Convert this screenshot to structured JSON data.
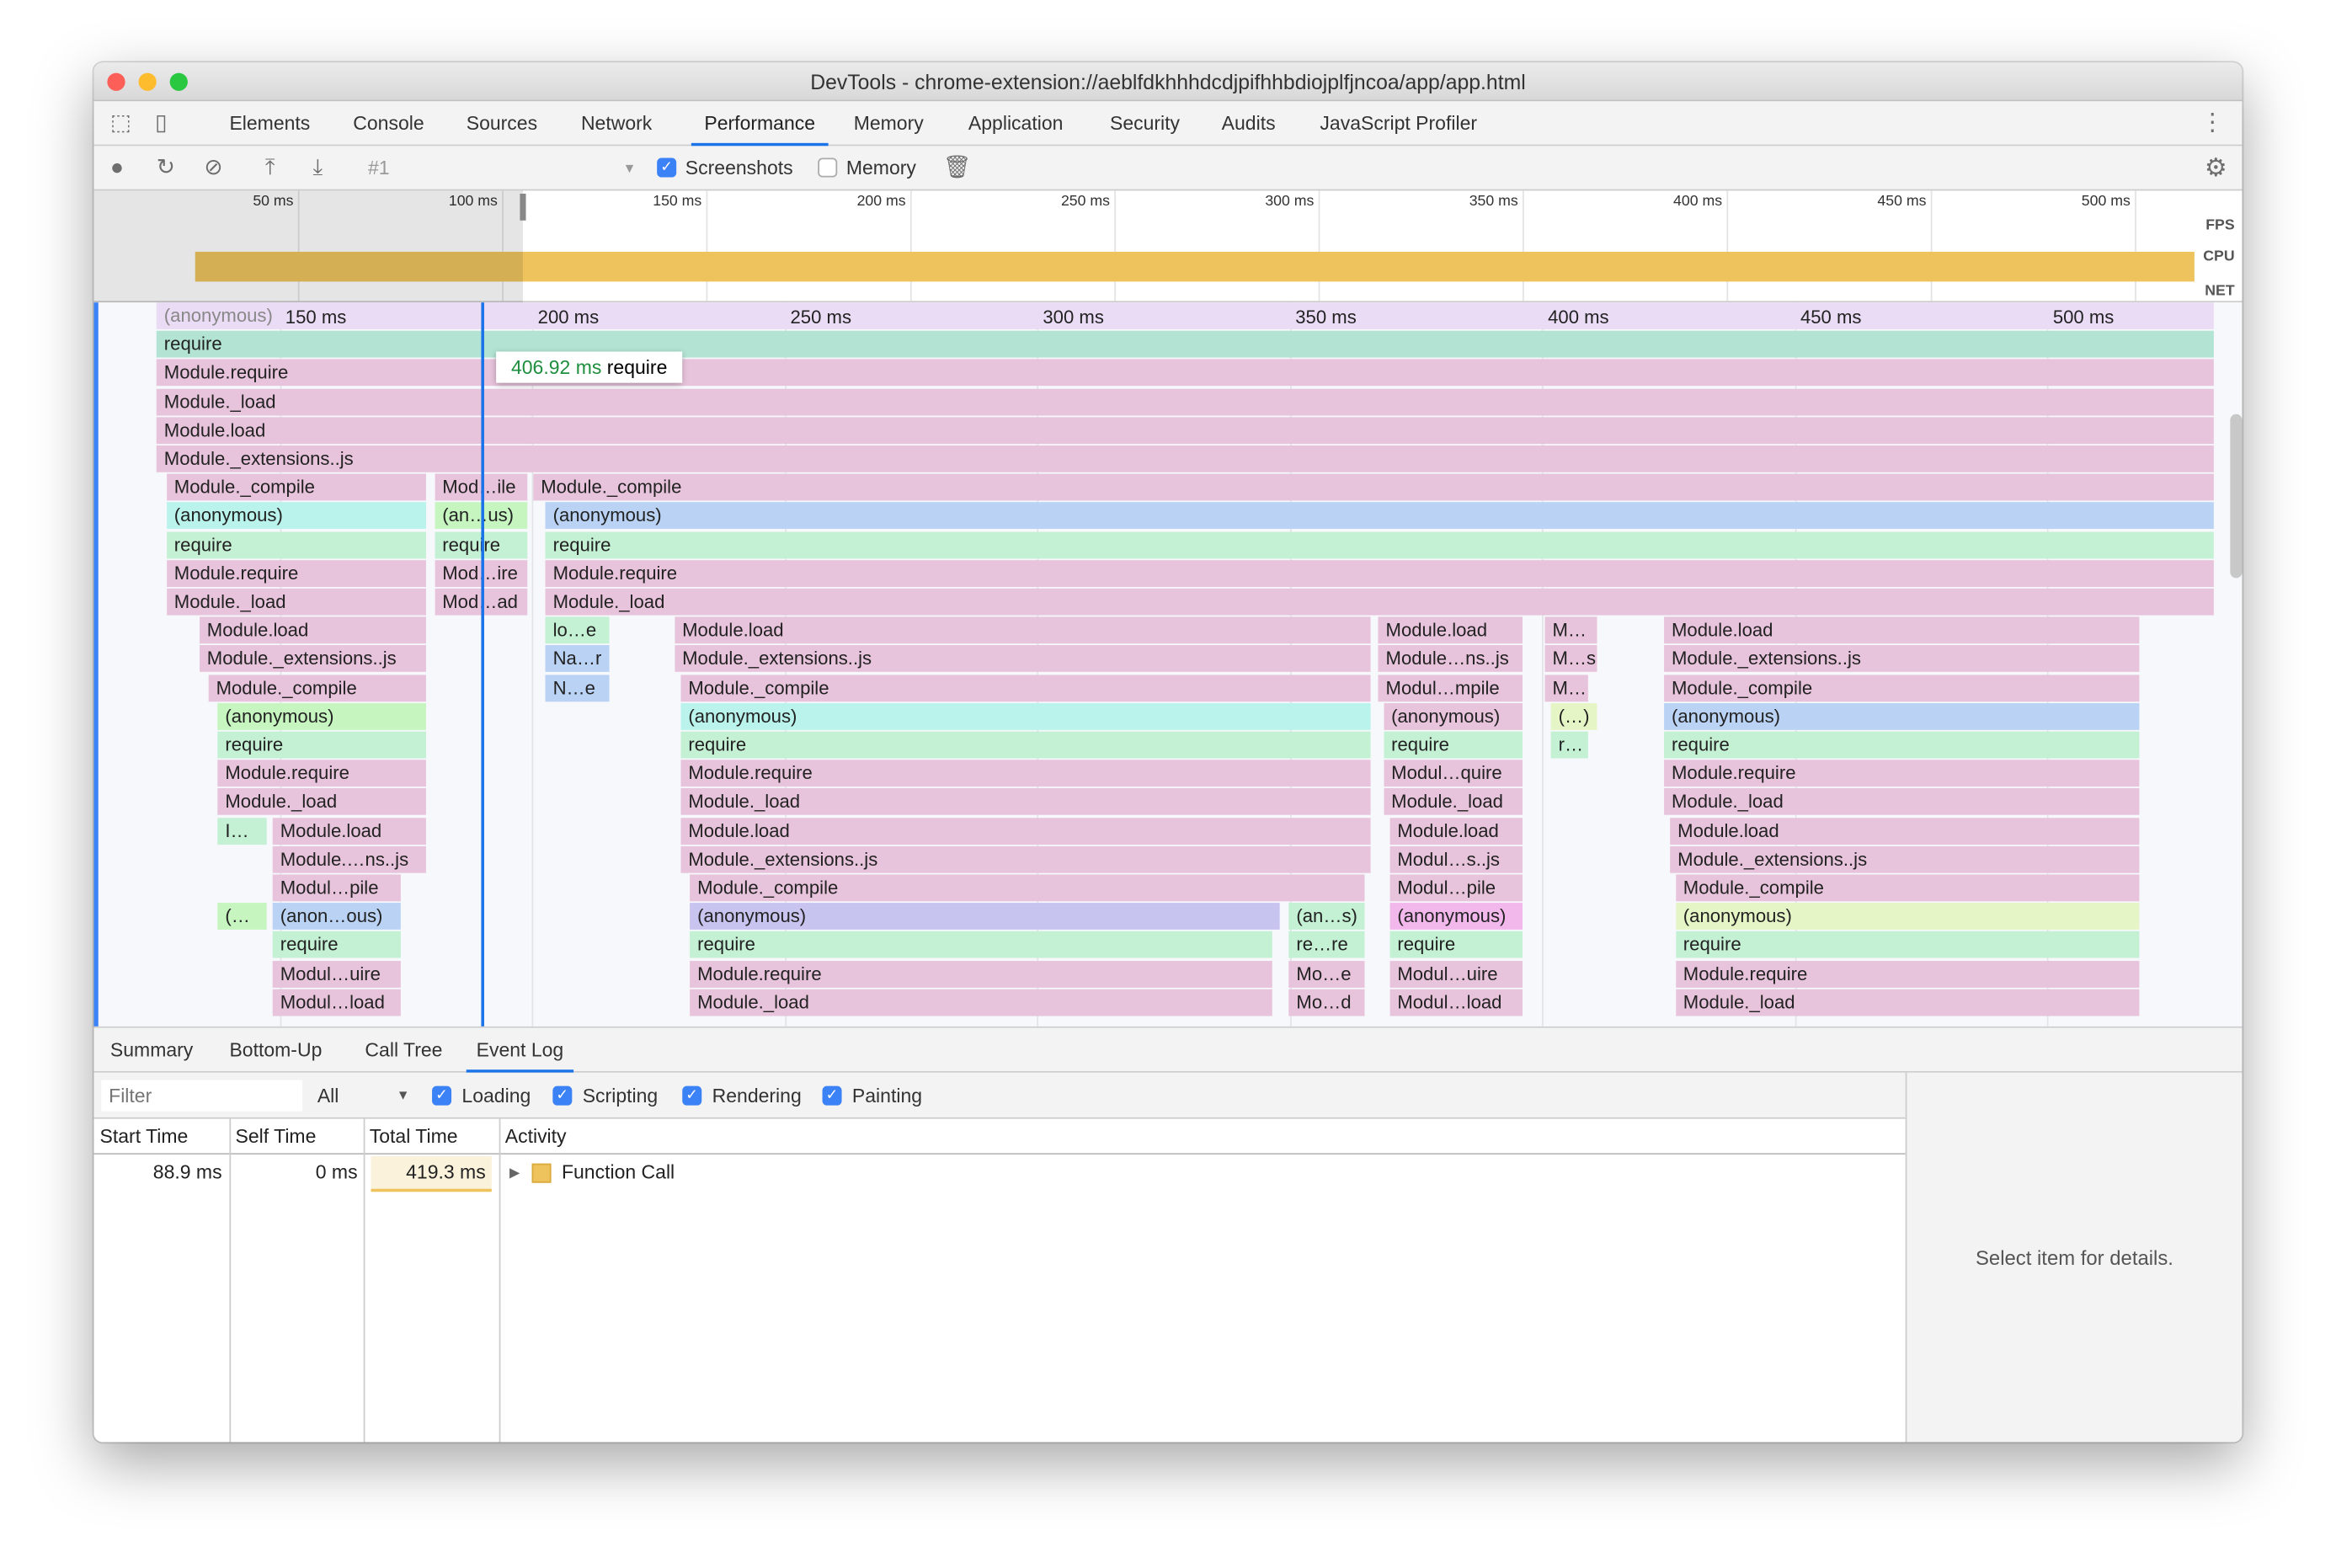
{
  "window": {
    "title": "DevTools - chrome-extension://aeblfdkhhhdcdjpifhhbdiojplfjncoa/app/app.html"
  },
  "tabs": [
    {
      "label": "Elements"
    },
    {
      "label": "Console"
    },
    {
      "label": "Sources"
    },
    {
      "label": "Network"
    },
    {
      "label": "Performance",
      "active": true
    },
    {
      "label": "Memory"
    },
    {
      "label": "Application"
    },
    {
      "label": "Security"
    },
    {
      "label": "Audits"
    },
    {
      "label": "JavaScript Profiler"
    }
  ],
  "toolbar": {
    "recording": "#1",
    "screenshots_label": "Screenshots",
    "screenshots_checked": true,
    "memory_label": "Memory",
    "memory_checked": false
  },
  "overview": {
    "ticks": [
      "50 ms",
      "100 ms",
      "150 ms",
      "200 ms",
      "250 ms",
      "300 ms",
      "350 ms",
      "400 ms",
      "450 ms",
      "500 ms"
    ],
    "labels": {
      "fps": "FPS",
      "cpu": "CPU",
      "net": "NET"
    },
    "cpu_color": "#eec35d"
  },
  "flame": {
    "ticks": [
      "150 ms",
      "200 ms",
      "250 ms",
      "300 ms",
      "350 ms",
      "400 ms",
      "450 ms",
      "500 ms"
    ],
    "tick_values": [
      150,
      200,
      250,
      300,
      350,
      400,
      450,
      500
    ],
    "tooltip": {
      "time": "406.92 ms",
      "name": "require"
    },
    "cursor_ms": 190,
    "colors": {
      "pink": "#e8c4dc",
      "mint": "#b2e3d3",
      "green": "#c4f0d4",
      "cyan": "#b9f3ec",
      "lime": "#c6f5c0",
      "blue": "#bad3f5",
      "purple": "#c8c4f0",
      "magenta": "#f2b8ec",
      "yellow": "#e6f5c6",
      "ruler": "#ebdcf6"
    },
    "rows": [
      [
        {
          "label": "(anonymous)",
          "s": 125.7,
          "e": 533.3,
          "c": "ruler"
        }
      ],
      [
        {
          "label": "require",
          "s": 125.7,
          "e": 533.3,
          "c": "mint"
        }
      ],
      [
        {
          "label": "Module.require",
          "s": 125.7,
          "e": 533.3,
          "c": "pink"
        }
      ],
      [
        {
          "label": "Module._load",
          "s": 125.7,
          "e": 533.3,
          "c": "pink"
        }
      ],
      [
        {
          "label": "Module.load",
          "s": 125.7,
          "e": 533.3,
          "c": "pink"
        }
      ],
      [
        {
          "label": "Module._extensions..js",
          "s": 125.7,
          "e": 533.3,
          "c": "pink"
        }
      ],
      [
        {
          "label": "Module._compile",
          "s": 127.7,
          "e": 179.4,
          "c": "pink"
        },
        {
          "label": "Mod…ile",
          "s": 180.8,
          "e": 199.4,
          "c": "pink"
        },
        {
          "label": "Module._compile",
          "s": 200.3,
          "e": 533.3,
          "c": "pink"
        }
      ],
      [
        {
          "label": "(anonymous)",
          "s": 127.7,
          "e": 179.4,
          "c": "cyan"
        },
        {
          "label": "(an…us)",
          "s": 180.8,
          "e": 199.4,
          "c": "lime"
        },
        {
          "label": "(anonymous)",
          "s": 202.7,
          "e": 533.3,
          "c": "blue"
        }
      ],
      [
        {
          "label": "require",
          "s": 127.7,
          "e": 179.4,
          "c": "green"
        },
        {
          "label": "require",
          "s": 180.8,
          "e": 199.4,
          "c": "green"
        },
        {
          "label": "require",
          "s": 202.7,
          "e": 533.3,
          "c": "green"
        }
      ],
      [
        {
          "label": "Module.require",
          "s": 127.7,
          "e": 179.4,
          "c": "pink"
        },
        {
          "label": "Mod…ire",
          "s": 180.8,
          "e": 199.4,
          "c": "pink"
        },
        {
          "label": "Module.require",
          "s": 202.7,
          "e": 533.3,
          "c": "pink"
        }
      ],
      [
        {
          "label": "Module._load",
          "s": 127.7,
          "e": 179.4,
          "c": "pink"
        },
        {
          "label": "Mod…ad",
          "s": 180.8,
          "e": 199.4,
          "c": "pink"
        },
        {
          "label": "Module._load",
          "s": 202.7,
          "e": 533.3,
          "c": "pink"
        }
      ],
      [
        {
          "label": "Module.load",
          "s": 134.2,
          "e": 179.4,
          "c": "pink"
        },
        {
          "label": "lo…e",
          "s": 202.7,
          "e": 215.6,
          "c": "green"
        },
        {
          "label": "Module.load",
          "s": 228.3,
          "e": 366.4,
          "c": "pink"
        },
        {
          "label": "Module.load",
          "s": 367.6,
          "e": 396.5,
          "c": "pink"
        },
        {
          "label": "M…",
          "s": 400.6,
          "e": 411.2,
          "c": "pink"
        },
        {
          "label": "Module.load",
          "s": 424.2,
          "e": 518.6,
          "c": "pink"
        }
      ],
      [
        {
          "label": "Module._extensions..js",
          "s": 134.2,
          "e": 179.4,
          "c": "pink"
        },
        {
          "label": "Na…r",
          "s": 202.7,
          "e": 215.6,
          "c": "blue"
        },
        {
          "label": "Module._extensions..js",
          "s": 228.3,
          "e": 366.4,
          "c": "pink"
        },
        {
          "label": "Module…ns..js",
          "s": 367.6,
          "e": 396.5,
          "c": "pink"
        },
        {
          "label": "M…s",
          "s": 400.6,
          "e": 411.2,
          "c": "pink"
        },
        {
          "label": "Module._extensions..js",
          "s": 424.2,
          "e": 518.6,
          "c": "pink"
        }
      ],
      [
        {
          "label": "Module._compile",
          "s": 136.0,
          "e": 179.4,
          "c": "pink"
        },
        {
          "label": "N…e",
          "s": 202.7,
          "e": 215.6,
          "c": "blue"
        },
        {
          "label": "Module._compile",
          "s": 229.5,
          "e": 366.4,
          "c": "pink"
        },
        {
          "label": "Modul…mpile",
          "s": 367.6,
          "e": 396.5,
          "c": "pink"
        },
        {
          "label": "M…",
          "s": 400.6,
          "e": 409.4,
          "c": "pink"
        },
        {
          "label": "Module._compile",
          "s": 424.2,
          "e": 518.6,
          "c": "pink"
        }
      ],
      [
        {
          "label": "(anonymous)",
          "s": 137.8,
          "e": 179.4,
          "c": "lime"
        },
        {
          "label": "(anonymous)",
          "s": 229.5,
          "e": 366.4,
          "c": "cyan"
        },
        {
          "label": "(anonymous)",
          "s": 368.7,
          "e": 396.5,
          "c": "pink"
        },
        {
          "label": "(…)",
          "s": 401.8,
          "e": 411.2,
          "c": "yellow"
        },
        {
          "label": "(anonymous)",
          "s": 424.2,
          "e": 518.6,
          "c": "blue"
        }
      ],
      [
        {
          "label": "require",
          "s": 137.8,
          "e": 179.4,
          "c": "green"
        },
        {
          "label": "require",
          "s": 229.5,
          "e": 366.4,
          "c": "green"
        },
        {
          "label": "require",
          "s": 368.7,
          "e": 396.5,
          "c": "green"
        },
        {
          "label": "r…",
          "s": 401.8,
          "e": 409.4,
          "c": "green"
        },
        {
          "label": "require",
          "s": 424.2,
          "e": 518.6,
          "c": "green"
        }
      ],
      [
        {
          "label": "Module.require",
          "s": 137.8,
          "e": 179.4,
          "c": "pink"
        },
        {
          "label": "Module.require",
          "s": 229.5,
          "e": 366.4,
          "c": "pink"
        },
        {
          "label": "Modul…quire",
          "s": 368.7,
          "e": 396.5,
          "c": "pink"
        },
        {
          "label": "Module.require",
          "s": 424.2,
          "e": 518.6,
          "c": "pink"
        }
      ],
      [
        {
          "label": "Module._load",
          "s": 137.8,
          "e": 179.4,
          "c": "pink"
        },
        {
          "label": "Module._load",
          "s": 229.5,
          "e": 366.4,
          "c": "pink"
        },
        {
          "label": "Module._load",
          "s": 368.7,
          "e": 396.5,
          "c": "pink"
        },
        {
          "label": "Module._load",
          "s": 424.2,
          "e": 518.6,
          "c": "pink"
        }
      ],
      [
        {
          "label": "I…",
          "s": 137.8,
          "e": 147.8,
          "c": "green"
        },
        {
          "label": "Module.load",
          "s": 148.7,
          "e": 179.4,
          "c": "pink"
        },
        {
          "label": "Module.load",
          "s": 229.5,
          "e": 366.4,
          "c": "pink"
        },
        {
          "label": "Module.load",
          "s": 369.9,
          "e": 396.5,
          "c": "pink"
        },
        {
          "label": "Module.load",
          "s": 425.4,
          "e": 518.6,
          "c": "pink"
        }
      ],
      [
        {
          "label": "Module.…ns..js",
          "s": 148.7,
          "e": 179.4,
          "c": "pink"
        },
        {
          "label": "Module._extensions..js",
          "s": 229.5,
          "e": 366.4,
          "c": "pink"
        },
        {
          "label": "Modul…s..js",
          "s": 369.9,
          "e": 396.5,
          "c": "pink"
        },
        {
          "label": "Module._extensions..js",
          "s": 425.4,
          "e": 518.6,
          "c": "pink"
        }
      ],
      [
        {
          "label": "Modul…pile",
          "s": 148.7,
          "e": 174.3,
          "c": "pink"
        },
        {
          "label": "Module._compile",
          "s": 231.3,
          "e": 365.2,
          "c": "pink"
        },
        {
          "label": "Modul…pile",
          "s": 369.9,
          "e": 396.5,
          "c": "pink"
        },
        {
          "label": "Module._compile",
          "s": 426.5,
          "e": 518.6,
          "c": "pink"
        }
      ],
      [
        {
          "label": "(…",
          "s": 137.8,
          "e": 147.8,
          "c": "lime"
        },
        {
          "label": "(anon…ous)",
          "s": 148.7,
          "e": 174.3,
          "c": "blue"
        },
        {
          "label": "(anonymous)",
          "s": 231.3,
          "e": 348.4,
          "c": "purple"
        },
        {
          "label": "(an…s)",
          "s": 349.9,
          "e": 365.2,
          "c": "green"
        },
        {
          "label": "(anonymous)",
          "s": 369.9,
          "e": 396.5,
          "c": "magenta"
        },
        {
          "label": "(anonymous)",
          "s": 426.5,
          "e": 518.6,
          "c": "yellow"
        }
      ],
      [
        {
          "label": "require",
          "s": 148.7,
          "e": 174.3,
          "c": "green"
        },
        {
          "label": "require",
          "s": 231.3,
          "e": 346.9,
          "c": "green"
        },
        {
          "label": "re…re",
          "s": 349.9,
          "e": 365.2,
          "c": "green"
        },
        {
          "label": "require",
          "s": 369.9,
          "e": 396.5,
          "c": "green"
        },
        {
          "label": "require",
          "s": 426.5,
          "e": 518.6,
          "c": "green"
        }
      ],
      [
        {
          "label": "Modul…uire",
          "s": 148.7,
          "e": 174.3,
          "c": "pink"
        },
        {
          "label": "Module.require",
          "s": 231.3,
          "e": 346.9,
          "c": "pink"
        },
        {
          "label": "Mo…e",
          "s": 349.9,
          "e": 365.2,
          "c": "pink"
        },
        {
          "label": "Modul…uire",
          "s": 369.9,
          "e": 396.5,
          "c": "pink"
        },
        {
          "label": "Module.require",
          "s": 426.5,
          "e": 518.6,
          "c": "pink"
        }
      ],
      [
        {
          "label": "Modul…load",
          "s": 148.7,
          "e": 174.3,
          "c": "pink"
        },
        {
          "label": "Module._load",
          "s": 231.3,
          "e": 346.9,
          "c": "pink"
        },
        {
          "label": "Mo…d",
          "s": 349.9,
          "e": 365.2,
          "c": "pink"
        },
        {
          "label": "Modul…load",
          "s": 369.9,
          "e": 396.5,
          "c": "pink"
        },
        {
          "label": "Module._load",
          "s": 426.5,
          "e": 518.6,
          "c": "pink"
        }
      ]
    ]
  },
  "bottom": {
    "tabs": [
      {
        "label": "Summary"
      },
      {
        "label": "Bottom-Up"
      },
      {
        "label": "Call Tree"
      },
      {
        "label": "Event Log",
        "active": true
      }
    ],
    "filter_placeholder": "Filter",
    "select_value": "All",
    "checks": [
      {
        "label": "Loading"
      },
      {
        "label": "Scripting"
      },
      {
        "label": "Rendering"
      },
      {
        "label": "Painting"
      }
    ],
    "columns": [
      "Start Time",
      "Self Time",
      "Total Time",
      "Activity"
    ],
    "rows": [
      {
        "start": "88.9 ms",
        "self": "0 ms",
        "total": "419.3 ms",
        "activity": "Function Call",
        "color": "#eec35d"
      }
    ],
    "details": "Select item for details."
  }
}
